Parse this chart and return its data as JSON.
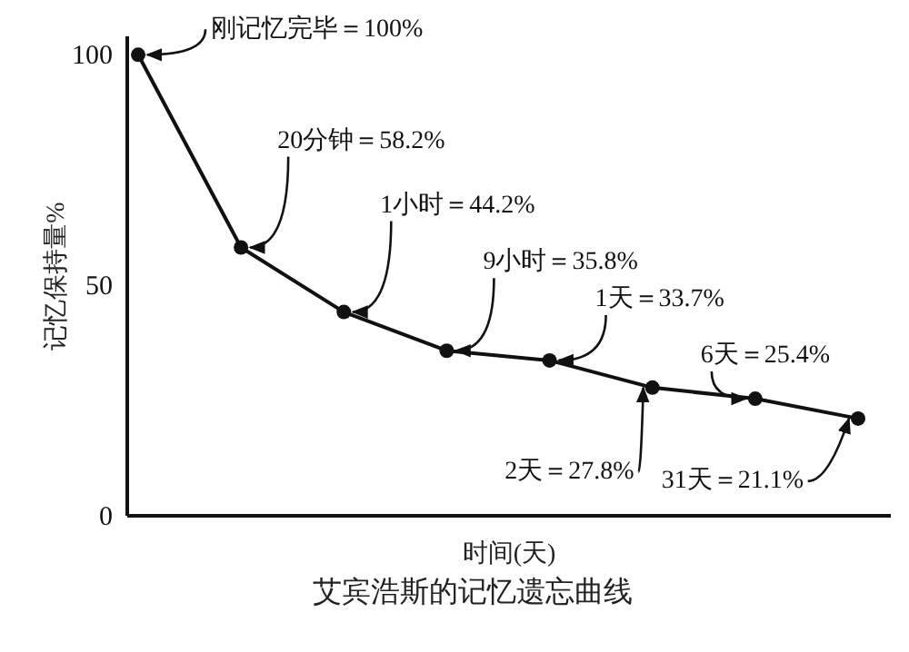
{
  "chart_data": {
    "type": "line",
    "title": "艾宾浩斯的记忆遗忘曲线",
    "xlabel": "时间(天)",
    "ylabel": "记忆保持量%",
    "categories": [
      null,
      null,
      null,
      null,
      null,
      null,
      null,
      null
    ],
    "series": [
      {
        "color": "#111111",
        "values": [
          100,
          58.2,
          44.2,
          35.8,
          33.7,
          27.8,
          25.4,
          21.1
        ],
        "value_labels": [
          "刚记忆完毕＝100%",
          "20分钟＝58.2%",
          "1小时＝44.2%",
          "9小时＝35.8%",
          "1天＝33.7%",
          "2天＝27.8%",
          "6天＝25.4%",
          "31天＝21.1%"
        ]
      }
    ],
    "ylim": [
      0,
      104
    ],
    "yticks": [
      0,
      50,
      100
    ],
    "tick_labels": "y",
    "marker": "circle",
    "line_style": "solid",
    "grid": false
  }
}
